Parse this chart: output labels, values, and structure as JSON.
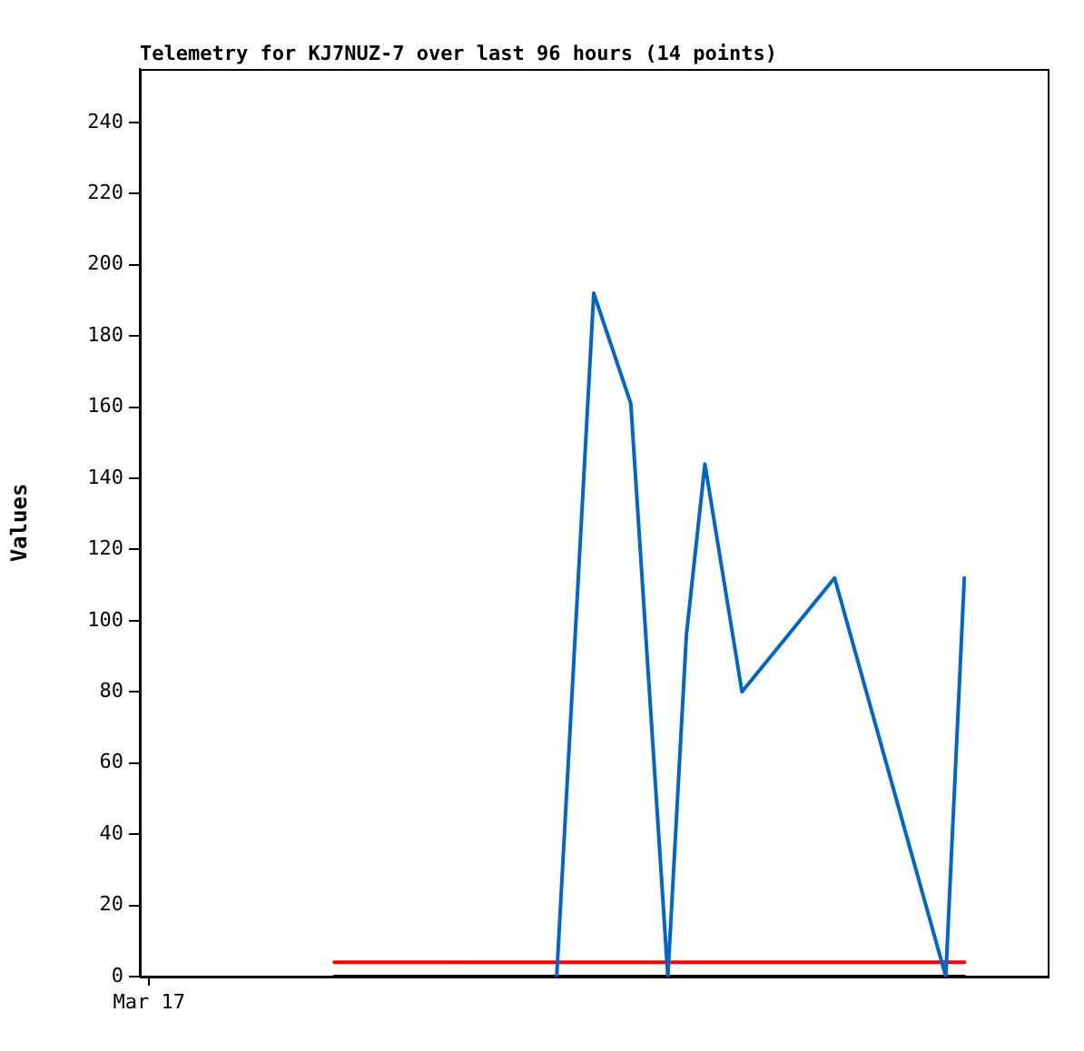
{
  "chart_data": {
    "type": "line",
    "title": "Telemetry for KJ7NUZ-7 over last 96 hours (14 points)",
    "ylabel": "Values",
    "categories": [
      "Mar 17",
      null,
      null,
      null,
      null,
      null,
      null,
      null,
      null,
      null,
      null,
      null,
      null,
      null,
      null,
      null,
      null,
      null,
      null,
      null,
      null,
      null,
      null,
      null,
      null,
      null,
      null,
      null,
      null,
      null,
      null,
      null,
      null,
      null,
      null,
      null,
      null,
      null,
      null,
      null,
      null,
      null,
      null,
      null,
      null,
      null,
      null,
      null,
      null
    ],
    "ylim": [
      0,
      255
    ],
    "yticks": [
      0,
      20,
      40,
      60,
      80,
      100,
      120,
      140,
      160,
      180,
      200,
      220,
      240
    ],
    "grid": false,
    "legend": false,
    "marker": "none",
    "line_style": "solid",
    "series": [
      {
        "color": "#000000",
        "values": [
          null,
          null,
          null,
          null,
          null,
          null,
          null,
          null,
          null,
          null,
          0,
          null,
          null,
          null,
          null,
          null,
          null,
          null,
          null,
          null,
          null,
          null,
          null,
          null,
          null,
          null,
          null,
          null,
          null,
          null,
          null,
          null,
          null,
          null,
          null,
          null,
          null,
          null,
          null,
          null,
          null,
          null,
          null,
          null,
          0,
          null,
          null,
          null,
          null
        ]
      },
      {
        "color": "#ff0000",
        "values": [
          null,
          null,
          null,
          null,
          null,
          null,
          null,
          null,
          null,
          null,
          4,
          null,
          null,
          null,
          null,
          null,
          null,
          null,
          null,
          null,
          null,
          null,
          null,
          null,
          null,
          null,
          null,
          null,
          null,
          null,
          null,
          null,
          null,
          null,
          null,
          null,
          null,
          null,
          null,
          null,
          null,
          null,
          null,
          null,
          4,
          null,
          null,
          null,
          null
        ]
      },
      {
        "color": "#0066cc",
        "values": [
          null,
          null,
          null,
          null,
          null,
          null,
          null,
          null,
          null,
          null,
          null,
          null,
          null,
          null,
          null,
          null,
          null,
          null,
          null,
          null,
          null,
          null,
          0,
          null,
          192,
          null,
          161,
          null,
          0,
          96,
          144,
          null,
          80,
          null,
          null,
          null,
          null,
          112,
          null,
          null,
          null,
          null,
          null,
          0,
          112,
          null,
          null,
          null,
          null
        ]
      }
    ]
  }
}
